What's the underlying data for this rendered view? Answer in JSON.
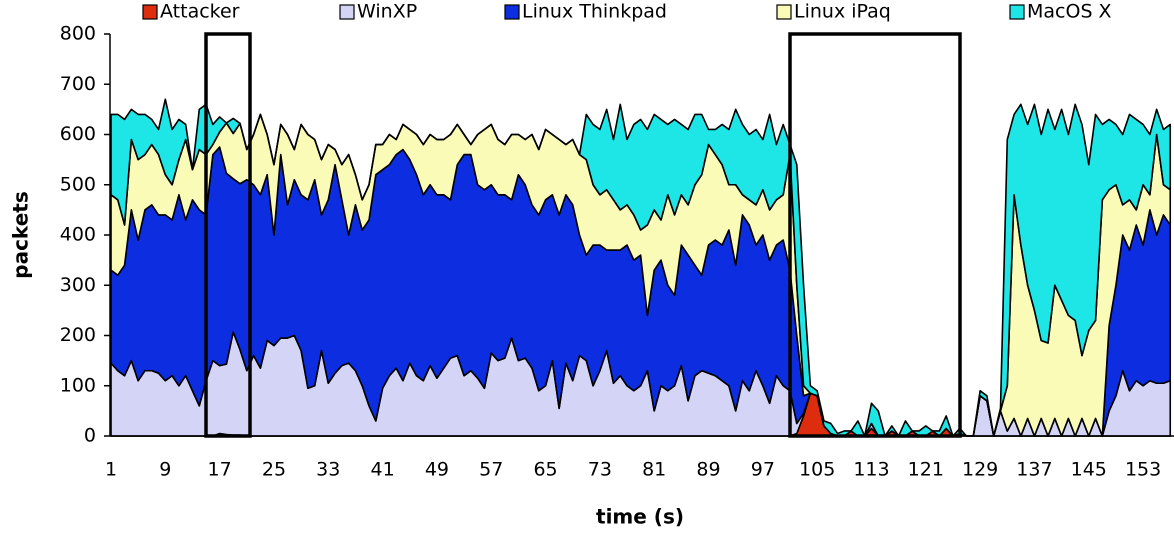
{
  "chart_data": {
    "type": "stacked_area",
    "xlabel": "time (s)",
    "ylabel": "packets",
    "categories": [
      "1",
      null,
      null,
      null,
      null,
      null,
      null,
      null,
      "9",
      null,
      null,
      null,
      null,
      null,
      null,
      null,
      "17",
      null,
      null,
      null,
      null,
      null,
      null,
      null,
      "25",
      null,
      null,
      null,
      null,
      null,
      null,
      null,
      "33",
      null,
      null,
      null,
      null,
      null,
      null,
      null,
      "41",
      null,
      null,
      null,
      null,
      null,
      null,
      null,
      "49",
      null,
      null,
      null,
      null,
      null,
      null,
      null,
      "57",
      null,
      null,
      null,
      null,
      null,
      null,
      null,
      "65",
      null,
      null,
      null,
      null,
      null,
      null,
      null,
      "73",
      null,
      null,
      null,
      null,
      null,
      null,
      null,
      "81",
      null,
      null,
      null,
      null,
      null,
      null,
      null,
      "89",
      null,
      null,
      null,
      null,
      null,
      null,
      null,
      "97",
      null,
      null,
      null,
      null,
      null,
      null,
      null,
      "105",
      null,
      null,
      null,
      null,
      null,
      null,
      null,
      "113",
      null,
      null,
      null,
      null,
      null,
      null,
      null,
      "121",
      null,
      null,
      null,
      null,
      null,
      null,
      null,
      "129",
      null,
      null,
      null,
      null,
      null,
      null,
      null,
      "137",
      null,
      null,
      null,
      null,
      null,
      null,
      null,
      "145",
      null,
      null,
      null,
      null,
      null,
      null,
      null,
      "153",
      null,
      null,
      null,
      null
    ],
    "series": [
      {
        "name": "Attacker",
        "color": "#dd2c0e",
        "values": [
          0,
          0,
          0,
          0,
          0,
          0,
          0,
          0,
          0,
          0,
          0,
          0,
          0,
          0,
          0,
          0,
          5,
          3,
          2,
          2,
          0,
          0,
          0,
          0,
          0,
          0,
          0,
          0,
          0,
          0,
          0,
          0,
          0,
          0,
          0,
          0,
          0,
          0,
          0,
          0,
          0,
          0,
          0,
          0,
          0,
          0,
          0,
          0,
          0,
          0,
          0,
          0,
          0,
          0,
          0,
          0,
          0,
          0,
          0,
          0,
          0,
          0,
          0,
          0,
          0,
          0,
          0,
          0,
          0,
          0,
          0,
          0,
          0,
          0,
          0,
          0,
          0,
          0,
          0,
          0,
          0,
          0,
          0,
          0,
          0,
          0,
          0,
          0,
          0,
          0,
          0,
          0,
          0,
          0,
          0,
          0,
          0,
          0,
          0,
          0,
          0,
          5,
          40,
          85,
          80,
          20,
          5,
          0,
          0,
          10,
          0,
          0,
          15,
          0,
          0,
          10,
          0,
          0,
          10,
          0,
          0,
          10,
          0,
          15,
          0,
          5,
          0,
          0,
          0,
          0,
          0,
          0,
          0,
          0,
          0,
          0,
          0,
          0,
          0,
          0,
          0,
          0,
          0,
          0,
          0,
          0,
          0,
          0,
          0,
          0,
          0,
          0,
          0,
          0,
          0,
          0,
          0
        ]
      },
      {
        "name": "WinXP",
        "color": "#d4d4f6",
        "values": [
          145,
          130,
          120,
          150,
          110,
          130,
          130,
          125,
          110,
          120,
          100,
          120,
          90,
          60,
          110,
          150,
          135,
          140,
          205,
          170,
          130,
          160,
          135,
          190,
          180,
          195,
          195,
          200,
          170,
          95,
          100,
          170,
          105,
          125,
          140,
          145,
          130,
          100,
          60,
          30,
          95,
          120,
          135,
          110,
          145,
          120,
          110,
          140,
          115,
          135,
          155,
          160,
          120,
          130,
          115,
          95,
          165,
          150,
          155,
          195,
          150,
          155,
          135,
          90,
          100,
          150,
          55,
          145,
          110,
          160,
          150,
          100,
          130,
          170,
          105,
          120,
          100,
          90,
          100,
          130,
          50,
          100,
          90,
          100,
          140,
          70,
          120,
          130,
          125,
          120,
          110,
          100,
          50,
          110,
          90,
          130,
          100,
          65,
          120,
          100,
          90,
          20,
          5,
          0,
          0,
          0,
          0,
          0,
          0,
          0,
          0,
          0,
          10,
          0,
          0,
          0,
          0,
          0,
          0,
          0,
          0,
          0,
          0,
          0,
          0,
          0,
          0,
          0,
          80,
          70,
          0,
          50,
          10,
          35,
          0,
          35,
          0,
          35,
          0,
          35,
          0,
          35,
          0,
          35,
          0,
          35,
          0,
          50,
          80,
          130,
          90,
          110,
          100,
          110,
          105,
          105,
          110
        ]
      },
      {
        "name": "Linux Thinkpad",
        "color": "#0c2ee0",
        "values": [
          185,
          190,
          220,
          300,
          280,
          320,
          330,
          315,
          330,
          310,
          380,
          310,
          380,
          390,
          330,
          410,
          435,
          380,
          305,
          330,
          380,
          340,
          345,
          330,
          220,
          365,
          265,
          310,
          310,
          375,
          410,
          270,
          365,
          415,
          330,
          255,
          330,
          310,
          370,
          490,
          435,
          420,
          425,
          460,
          405,
          400,
          370,
          360,
          365,
          345,
          315,
          380,
          440,
          430,
          385,
          395,
          335,
          330,
          325,
          275,
          370,
          345,
          325,
          350,
          370,
          330,
          385,
          335,
          350,
          240,
          210,
          280,
          250,
          200,
          265,
          250,
          280,
          260,
          260,
          110,
          280,
          250,
          210,
          180,
          240,
          290,
          220,
          190,
          255,
          270,
          270,
          310,
          290,
          330,
          330,
          250,
          300,
          285,
          260,
          290,
          240,
          175,
          35,
          0,
          0,
          0,
          0,
          0,
          0,
          0,
          0,
          0,
          0,
          0,
          0,
          0,
          0,
          0,
          0,
          0,
          0,
          0,
          0,
          0,
          0,
          0,
          0,
          0,
          0,
          0,
          0,
          0,
          0,
          0,
          0,
          0,
          0,
          0,
          0,
          0,
          0,
          0,
          0,
          0,
          0,
          0,
          0,
          170,
          220,
          270,
          280,
          310,
          280,
          340,
          295,
          335,
          310
        ]
      },
      {
        "name": "Linux iPaq",
        "color": "#fbfbb8",
        "values": [
          150,
          150,
          80,
          140,
          160,
          110,
          120,
          120,
          80,
          70,
          70,
          160,
          60,
          120,
          120,
          20,
          30,
          100,
          90,
          120,
          60,
          100,
          160,
          80,
          140,
          60,
          140,
          60,
          140,
          130,
          80,
          110,
          110,
          30,
          70,
          160,
          60,
          60,
          70,
          60,
          50,
          60,
          30,
          50,
          60,
          80,
          100,
          100,
          110,
          110,
          130,
          80,
          40,
          20,
          100,
          120,
          120,
          110,
          100,
          130,
          80,
          90,
          140,
          130,
          140,
          120,
          150,
          100,
          130,
          160,
          190,
          120,
          100,
          120,
          100,
          80,
          80,
          90,
          50,
          180,
          120,
          80,
          180,
          160,
          100,
          100,
          160,
          200,
          200,
          170,
          160,
          90,
          160,
          40,
          50,
          80,
          90,
          100,
          90,
          90,
          230,
          100,
          20,
          0,
          0,
          0,
          0,
          0,
          0,
          0,
          0,
          0,
          0,
          0,
          0,
          0,
          0,
          0,
          0,
          0,
          0,
          0,
          0,
          0,
          0,
          0,
          0,
          0,
          0,
          0,
          0,
          0,
          90,
          445,
          380,
          265,
          250,
          155,
          185,
          265,
          270,
          205,
          230,
          125,
          210,
          195,
          470,
          270,
          200,
          60,
          100,
          30,
          120,
          30,
          200,
          60,
          70
        ]
      },
      {
        "name": "MacOS X",
        "color": "#1ee6e6",
        "values": [
          160,
          170,
          210,
          60,
          90,
          80,
          50,
          50,
          150,
          110,
          80,
          30,
          0,
          80,
          100,
          40,
          30,
          0,
          30,
          0,
          0,
          0,
          0,
          0,
          0,
          0,
          0,
          0,
          0,
          0,
          0,
          0,
          0,
          0,
          0,
          0,
          0,
          0,
          0,
          0,
          0,
          0,
          0,
          0,
          0,
          0,
          0,
          0,
          0,
          0,
          0,
          0,
          0,
          0,
          0,
          0,
          0,
          0,
          0,
          0,
          0,
          0,
          0,
          0,
          0,
          0,
          0,
          0,
          0,
          0,
          90,
          120,
          130,
          160,
          120,
          210,
          130,
          180,
          220,
          190,
          190,
          200,
          140,
          190,
          140,
          150,
          140,
          120,
          30,
          50,
          80,
          110,
          150,
          140,
          130,
          150,
          100,
          190,
          110,
          140,
          20,
          240,
          200,
          15,
          10,
          10,
          20,
          5,
          10,
          0,
          30,
          0,
          40,
          50,
          0,
          10,
          0,
          30,
          0,
          10,
          20,
          0,
          10,
          25,
          0,
          10,
          0,
          0,
          10,
          10,
          0,
          5,
          490,
          160,
          280,
          320,
          410,
          410,
          465,
          310,
          380,
          360,
          430,
          460,
          330,
          410,
          150,
          140,
          120,
          140,
          170,
          180,
          120,
          120,
          50,
          110,
          130
        ]
      }
    ],
    "ylim": [
      0,
      800
    ],
    "yticks": [
      0,
      100,
      200,
      300,
      400,
      500,
      600,
      700,
      800
    ],
    "grid": false,
    "legend": "top"
  }
}
